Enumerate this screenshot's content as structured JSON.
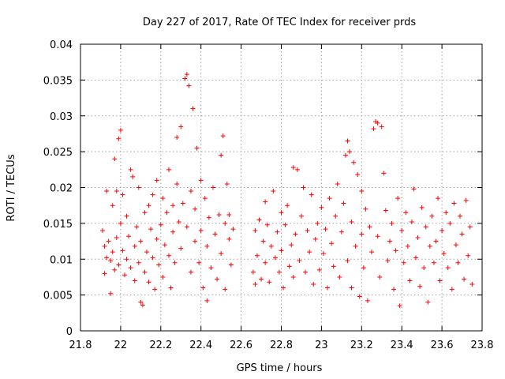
{
  "chart_data": {
    "type": "scatter",
    "title": "Day 227 of 2017, Rate Of TEC Index for receiver prds",
    "xlabel": "GPS time / hours",
    "ylabel": "ROTI / TECUs",
    "xlim": [
      21.8,
      23.8
    ],
    "ylim": [
      0,
      0.04
    ],
    "xticks": [
      "21.8",
      "22",
      "22.2",
      "22.4",
      "22.6",
      "22.8",
      "23",
      "23.2",
      "23.4",
      "23.6",
      "23.8"
    ],
    "yticks": [
      "0",
      "0.005",
      "0.01",
      "0.015",
      "0.02",
      "0.025",
      "0.03",
      "0.035",
      "0.04"
    ],
    "grid": true,
    "marker": "+",
    "color": "#ff0000",
    "series": [
      {
        "name": "ROTI",
        "points": [
          [
            21.91,
            0.014
          ],
          [
            21.92,
            0.0118
          ],
          [
            21.92,
            0.008
          ],
          [
            21.93,
            0.0195
          ],
          [
            21.93,
            0.0102
          ],
          [
            21.94,
            0.0125
          ],
          [
            21.95,
            0.0052
          ],
          [
            21.95,
            0.0098
          ],
          [
            21.96,
            0.0175
          ],
          [
            21.96,
            0.011
          ],
          [
            21.97,
            0.024
          ],
          [
            21.97,
            0.0085
          ],
          [
            21.98,
            0.013
          ],
          [
            21.98,
            0.0195
          ],
          [
            21.99,
            0.0268
          ],
          [
            21.99,
            0.0092
          ],
          [
            22.0,
            0.028
          ],
          [
            22.0,
            0.015
          ],
          [
            22.01,
            0.0112
          ],
          [
            22.01,
            0.019
          ],
          [
            22.02,
            0.0078
          ],
          [
            22.03,
            0.016
          ],
          [
            22.03,
            0.01
          ],
          [
            22.04,
            0.0132
          ],
          [
            22.05,
            0.0225
          ],
          [
            22.05,
            0.0088
          ],
          [
            22.06,
            0.0215
          ],
          [
            22.07,
            0.0118
          ],
          [
            22.07,
            0.007
          ],
          [
            22.08,
            0.0145
          ],
          [
            22.09,
            0.02
          ],
          [
            22.09,
            0.0095
          ],
          [
            22.1,
            0.004
          ],
          [
            22.1,
            0.0125
          ],
          [
            22.11,
            0.0036
          ],
          [
            22.12,
            0.0165
          ],
          [
            22.12,
            0.0082
          ],
          [
            22.13,
            0.011
          ],
          [
            22.14,
            0.0175
          ],
          [
            22.14,
            0.0068
          ],
          [
            22.15,
            0.0142
          ],
          [
            22.16,
            0.019
          ],
          [
            22.16,
            0.0102
          ],
          [
            22.17,
            0.0058
          ],
          [
            22.18,
            0.0128
          ],
          [
            22.18,
            0.021
          ],
          [
            22.19,
            0.0092
          ],
          [
            22.2,
            0.0148
          ],
          [
            22.21,
            0.0075
          ],
          [
            22.21,
            0.0185
          ],
          [
            22.22,
            0.012
          ],
          [
            22.23,
            0.0165
          ],
          [
            22.24,
            0.0105
          ],
          [
            22.24,
            0.0225
          ],
          [
            22.25,
            0.006
          ],
          [
            22.26,
            0.0175
          ],
          [
            22.26,
            0.0138
          ],
          [
            22.27,
            0.0095
          ],
          [
            22.28,
            0.0205
          ],
          [
            22.28,
            0.027
          ],
          [
            22.29,
            0.0152
          ],
          [
            22.3,
            0.0285
          ],
          [
            22.3,
            0.0115
          ],
          [
            22.31,
            0.0178
          ],
          [
            22.32,
            0.0352
          ],
          [
            22.33,
            0.0358
          ],
          [
            22.33,
            0.0145
          ],
          [
            22.34,
            0.0342
          ],
          [
            22.35,
            0.0082
          ],
          [
            22.35,
            0.0195
          ],
          [
            22.36,
            0.031
          ],
          [
            22.37,
            0.0125
          ],
          [
            22.37,
            0.017
          ],
          [
            22.38,
            0.0255
          ],
          [
            22.39,
            0.0095
          ],
          [
            22.4,
            0.014
          ],
          [
            22.4,
            0.021
          ],
          [
            22.41,
            0.006
          ],
          [
            22.42,
            0.0185
          ],
          [
            22.43,
            0.0042
          ],
          [
            22.43,
            0.0118
          ],
          [
            22.44,
            0.0158
          ],
          [
            22.45,
            0.0088
          ],
          [
            22.46,
            0.02
          ],
          [
            22.47,
            0.0135
          ],
          [
            22.48,
            0.0072
          ],
          [
            22.49,
            0.0162
          ],
          [
            22.5,
            0.0245
          ],
          [
            22.5,
            0.0108
          ],
          [
            22.51,
            0.0272
          ],
          [
            22.52,
            0.015
          ],
          [
            22.52,
            0.0058
          ],
          [
            22.53,
            0.0205
          ],
          [
            22.54,
            0.0128
          ],
          [
            22.54,
            0.0162
          ],
          [
            22.55,
            0.0092
          ],
          [
            22.56,
            0.0142
          ],
          [
            22.66,
            0.0082
          ],
          [
            22.67,
            0.014
          ],
          [
            22.67,
            0.0065
          ],
          [
            22.68,
            0.0105
          ],
          [
            22.69,
            0.0155
          ],
          [
            22.7,
            0.0072
          ],
          [
            22.71,
            0.0125
          ],
          [
            22.72,
            0.018
          ],
          [
            22.72,
            0.0095
          ],
          [
            22.73,
            0.0148
          ],
          [
            22.74,
            0.0068
          ],
          [
            22.75,
            0.0118
          ],
          [
            22.76,
            0.0195
          ],
          [
            22.77,
            0.0102
          ],
          [
            22.78,
            0.0138
          ],
          [
            22.79,
            0.0082
          ],
          [
            22.8,
            0.0165
          ],
          [
            22.8,
            0.0112
          ],
          [
            22.81,
            0.006
          ],
          [
            22.82,
            0.0148
          ],
          [
            22.83,
            0.0175
          ],
          [
            22.84,
            0.009
          ],
          [
            22.85,
            0.012
          ],
          [
            22.86,
            0.0228
          ],
          [
            22.86,
            0.0075
          ],
          [
            22.87,
            0.0135
          ],
          [
            22.88,
            0.0225
          ],
          [
            22.89,
            0.0098
          ],
          [
            22.9,
            0.016
          ],
          [
            22.91,
            0.02
          ],
          [
            22.92,
            0.0082
          ],
          [
            22.93,
            0.014
          ],
          [
            22.94,
            0.011
          ],
          [
            22.95,
            0.019
          ],
          [
            22.96,
            0.0065
          ],
          [
            22.97,
            0.0128
          ],
          [
            22.98,
            0.015
          ],
          [
            22.99,
            0.0085
          ],
          [
            23.0,
            0.0172
          ],
          [
            23.01,
            0.0108
          ],
          [
            23.02,
            0.0142
          ],
          [
            23.03,
            0.006
          ],
          [
            23.04,
            0.0185
          ],
          [
            23.05,
            0.0122
          ],
          [
            23.06,
            0.009
          ],
          [
            23.07,
            0.016
          ],
          [
            23.08,
            0.0205
          ],
          [
            23.09,
            0.0075
          ],
          [
            23.1,
            0.0138
          ],
          [
            23.11,
            0.0178
          ],
          [
            23.12,
            0.0245
          ],
          [
            23.13,
            0.0265
          ],
          [
            23.13,
            0.0098
          ],
          [
            23.14,
            0.025
          ],
          [
            23.15,
            0.006
          ],
          [
            23.15,
            0.0152
          ],
          [
            23.16,
            0.0235
          ],
          [
            23.17,
            0.0118
          ],
          [
            23.18,
            0.0218
          ],
          [
            23.19,
            0.0048
          ],
          [
            23.2,
            0.0195
          ],
          [
            23.2,
            0.0135
          ],
          [
            23.21,
            0.0088
          ],
          [
            23.22,
            0.017
          ],
          [
            23.23,
            0.0042
          ],
          [
            23.24,
            0.0145
          ],
          [
            23.25,
            0.011
          ],
          [
            23.26,
            0.0282
          ],
          [
            23.27,
            0.0292
          ],
          [
            23.28,
            0.029
          ],
          [
            23.28,
            0.0132
          ],
          [
            23.29,
            0.0075
          ],
          [
            23.3,
            0.0285
          ],
          [
            23.31,
            0.022
          ],
          [
            23.32,
            0.0168
          ],
          [
            23.33,
            0.0098
          ],
          [
            23.34,
            0.0125
          ],
          [
            23.35,
            0.015
          ],
          [
            23.36,
            0.0058
          ],
          [
            23.37,
            0.0112
          ],
          [
            23.38,
            0.0185
          ],
          [
            23.39,
            0.0035
          ],
          [
            23.4,
            0.014
          ],
          [
            23.41,
            0.0095
          ],
          [
            23.42,
            0.0165
          ],
          [
            23.43,
            0.0118
          ],
          [
            23.44,
            0.007
          ],
          [
            23.45,
            0.0152
          ],
          [
            23.46,
            0.0198
          ],
          [
            23.47,
            0.0102
          ],
          [
            23.48,
            0.013
          ],
          [
            23.49,
            0.0062
          ],
          [
            23.5,
            0.0172
          ],
          [
            23.51,
            0.0088
          ],
          [
            23.52,
            0.0145
          ],
          [
            23.53,
            0.004
          ],
          [
            23.54,
            0.0118
          ],
          [
            23.55,
            0.016
          ],
          [
            23.56,
            0.0095
          ],
          [
            23.57,
            0.0125
          ],
          [
            23.58,
            0.0185
          ],
          [
            23.59,
            0.007
          ],
          [
            23.6,
            0.014
          ],
          [
            23.61,
            0.0108
          ],
          [
            23.62,
            0.0165
          ],
          [
            23.63,
            0.0088
          ],
          [
            23.64,
            0.015
          ],
          [
            23.65,
            0.0058
          ],
          [
            23.66,
            0.0178
          ],
          [
            23.67,
            0.012
          ],
          [
            23.68,
            0.0095
          ],
          [
            23.69,
            0.016
          ],
          [
            23.7,
            0.0135
          ],
          [
            23.71,
            0.0072
          ],
          [
            23.72,
            0.0182
          ],
          [
            23.73,
            0.0105
          ],
          [
            23.74,
            0.0145
          ],
          [
            23.75,
            0.0065
          ]
        ]
      }
    ]
  }
}
